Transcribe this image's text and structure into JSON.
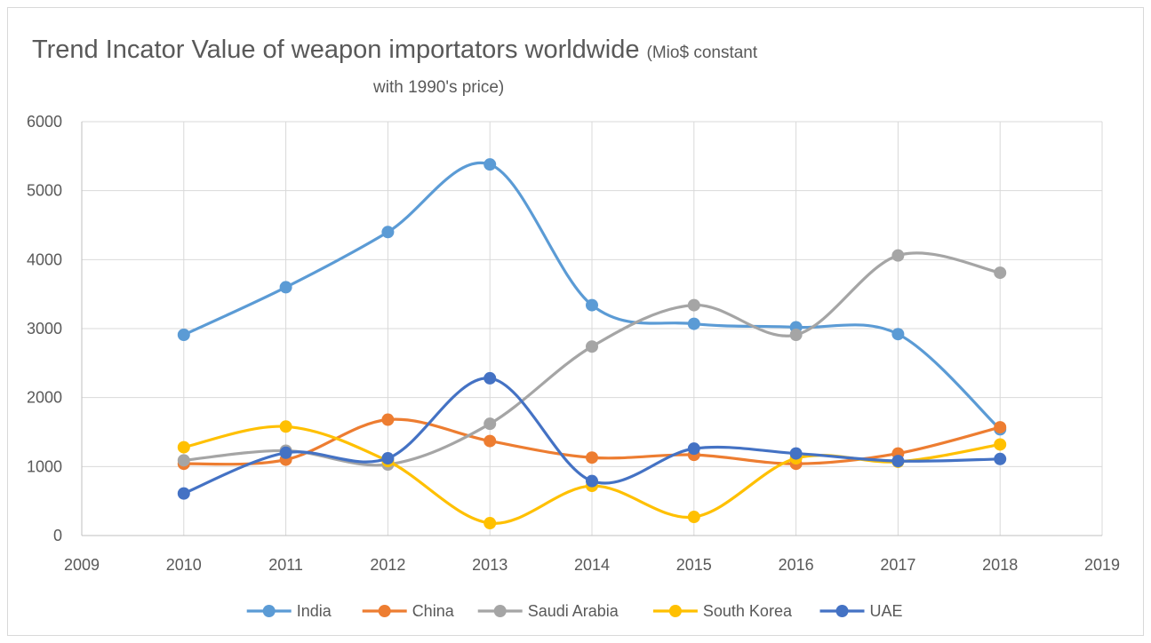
{
  "chart_data": {
    "type": "scatter",
    "title": "Trend Incator Value of weapon importators worldwide",
    "subtitle_part1": "(Mio$ constant",
    "subtitle_part2": "with 1990's price)",
    "xlabel": "",
    "ylabel": "",
    "xlim": [
      2009,
      2019
    ],
    "ylim": [
      0,
      6000
    ],
    "x_ticks": [
      2009,
      2010,
      2011,
      2012,
      2013,
      2014,
      2015,
      2016,
      2017,
      2018,
      2019
    ],
    "y_ticks": [
      0,
      1000,
      2000,
      3000,
      4000,
      5000,
      6000
    ],
    "grid": true,
    "legend_position": "bottom",
    "smooth_lines": true,
    "x": [
      2010,
      2011,
      2012,
      2013,
      2014,
      2015,
      2016,
      2017,
      2018
    ],
    "series": [
      {
        "name": "India",
        "color": "#5B9BD5",
        "values": [
          2910,
          3600,
          4400,
          5380,
          3340,
          3070,
          3020,
          2920,
          1540
        ]
      },
      {
        "name": "China",
        "color": "#ED7D31",
        "values": [
          1040,
          1100,
          1680,
          1370,
          1130,
          1170,
          1040,
          1190,
          1570
        ]
      },
      {
        "name": "Saudi Arabia",
        "color": "#A5A5A5",
        "values": [
          1090,
          1230,
          1030,
          1620,
          2740,
          3340,
          2910,
          4060,
          3810
        ]
      },
      {
        "name": "South Korea",
        "color": "#FFC000",
        "values": [
          1280,
          1580,
          1080,
          180,
          720,
          270,
          1120,
          1070,
          1320
        ]
      },
      {
        "name": "UAE",
        "color": "#4472C4",
        "values": [
          610,
          1200,
          1120,
          2280,
          790,
          1260,
          1190,
          1080,
          1110
        ]
      }
    ]
  }
}
